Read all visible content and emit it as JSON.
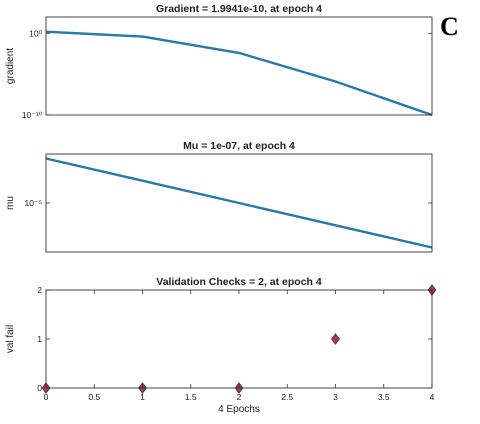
{
  "panel_letter": "C",
  "chart_data": [
    {
      "type": "line",
      "title": "Gradient = 1.9941e-10, at epoch 4",
      "xlabel": "",
      "ylabel": "gradient",
      "yscale": "log",
      "xlim": [
        0,
        4
      ],
      "ylim_exp": [
        -10,
        2
      ],
      "yticks": [
        {
          "exp": 0,
          "label": "10⁰"
        },
        {
          "exp": -10,
          "label": "10⁻¹⁰"
        }
      ],
      "x": [
        0,
        1,
        2,
        3,
        4
      ],
      "y_exp": [
        0.2,
        -0.4,
        -2.4,
        -5.9,
        -10
      ],
      "color": "#2a78a8",
      "grid": false
    },
    {
      "type": "line",
      "title": "Mu = 1e-07, at epoch 4",
      "xlabel": "",
      "ylabel": "mu",
      "yscale": "log",
      "xlim": [
        0,
        4
      ],
      "ylim_exp": [
        -7.2,
        -2.8
      ],
      "yticks": [
        {
          "exp": -5,
          "label": "10⁻⁵"
        }
      ],
      "x": [
        0,
        1,
        2,
        3,
        4
      ],
      "y_exp": [
        -3,
        -4,
        -5,
        -6,
        -7
      ],
      "color": "#2a78a8",
      "grid": false
    },
    {
      "type": "scatter",
      "title": "Validation Checks = 2, at epoch 4",
      "xlabel": "4 Epochs",
      "ylabel": "val fail",
      "xlim": [
        0,
        4
      ],
      "ylim": [
        0,
        2
      ],
      "xticks": [
        0,
        0.5,
        1,
        1.5,
        2,
        2.5,
        3,
        3.5,
        4
      ],
      "yticks": [
        0,
        1,
        2
      ],
      "x": [
        0,
        1,
        2,
        3,
        4
      ],
      "y": [
        0,
        0,
        0,
        1,
        2
      ],
      "marker": "diamond",
      "marker_fill": "#c0304a",
      "marker_edge": "#3a3a6a",
      "grid": false
    }
  ]
}
